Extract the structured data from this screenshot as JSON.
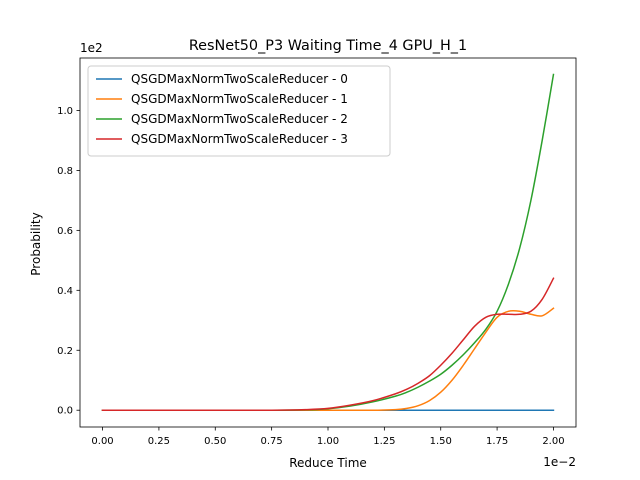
{
  "chart_data": {
    "type": "line",
    "title": "ResNet50_P3 Waiting Time_4 GPU_H_1",
    "xlabel": "Reduce Time",
    "ylabel": "Probability",
    "x_offset_text": "1e−2",
    "y_offset_text": "1e2",
    "xlim": [
      -0.1,
      2.1
    ],
    "ylim": [
      -0.056,
      1.175
    ],
    "x_ticks": [
      0.0,
      0.25,
      0.5,
      0.75,
      1.0,
      1.25,
      1.5,
      1.75,
      2.0
    ],
    "x_tick_labels": [
      "0.00",
      "0.25",
      "0.50",
      "0.75",
      "1.00",
      "1.25",
      "1.50",
      "1.75",
      "2.00"
    ],
    "y_ticks": [
      0.0,
      0.2,
      0.4,
      0.6,
      0.8,
      1.0
    ],
    "y_tick_labels": [
      "0.0",
      "0.2",
      "0.4",
      "0.6",
      "0.8",
      "1.0"
    ],
    "grid": false,
    "legend_position": "top-left",
    "x": [
      0.0,
      0.25,
      0.5,
      0.75,
      0.9,
      1.0,
      1.1,
      1.2,
      1.3,
      1.35,
      1.4,
      1.45,
      1.5,
      1.55,
      1.6,
      1.65,
      1.7,
      1.75,
      1.8,
      1.85,
      1.9,
      1.95,
      2.0
    ],
    "series": [
      {
        "name": "QSGDMaxNormTwoScaleReducer - 0",
        "color": "#1f77b4",
        "values": [
          0,
          0,
          0,
          0,
          0,
          0,
          0,
          0,
          0,
          0,
          0,
          0,
          0,
          0,
          0,
          0,
          0,
          0,
          0,
          0,
          0,
          0,
          0
        ]
      },
      {
        "name": "QSGDMaxNormTwoScaleReducer - 1",
        "color": "#ff7f0e",
        "values": [
          0,
          0,
          0,
          0,
          0,
          0,
          0,
          0,
          0.002,
          0.006,
          0.015,
          0.032,
          0.06,
          0.1,
          0.15,
          0.205,
          0.26,
          0.31,
          0.33,
          0.33,
          0.32,
          0.315,
          0.34
        ]
      },
      {
        "name": "QSGDMaxNormTwoScaleReducer - 2",
        "color": "#2ca02c",
        "values": [
          0,
          0,
          0,
          0,
          0.001,
          0.005,
          0.014,
          0.028,
          0.047,
          0.06,
          0.077,
          0.097,
          0.12,
          0.15,
          0.185,
          0.225,
          0.27,
          0.33,
          0.42,
          0.54,
          0.7,
          0.9,
          1.12
        ]
      },
      {
        "name": "QSGDMaxNormTwoScaleReducer - 3",
        "color": "#d62728",
        "values": [
          0,
          0,
          0,
          0,
          0.002,
          0.006,
          0.017,
          0.032,
          0.055,
          0.07,
          0.09,
          0.115,
          0.15,
          0.19,
          0.235,
          0.28,
          0.31,
          0.32,
          0.32,
          0.32,
          0.33,
          0.37,
          0.44
        ]
      }
    ]
  }
}
